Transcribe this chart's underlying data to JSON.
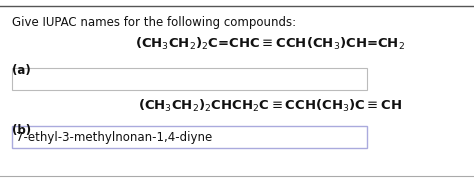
{
  "title": "Give IUPAC names for the following compounds:",
  "bg_color": "#ffffff",
  "label_a": "(a)",
  "label_b": "(b)",
  "formula_a": "(CH$_3$CH$_2$)$_2$C=CHC$\\equiv$CCH(CH$_3$)CH=CH$_2$",
  "formula_b": "(CH$_3$CH$_2$)$_2$CHCH$_2$C$\\equiv$CCH(CH$_3$)C$\\equiv$CH",
  "answer_b": "7-ethyl-3-methylnonan-1,4-diyne",
  "box_a_color": "#ffffff",
  "box_b_color": "#ffffff",
  "box_b_border": "#aaaadd",
  "box_a_border": "#bbbbbb",
  "title_fontsize": 8.5,
  "formula_fontsize": 9.5,
  "label_fontsize": 8.5,
  "answer_fontsize": 8.5,
  "top_border_color": "#555555",
  "bottom_border_color": "#aaaaaa"
}
